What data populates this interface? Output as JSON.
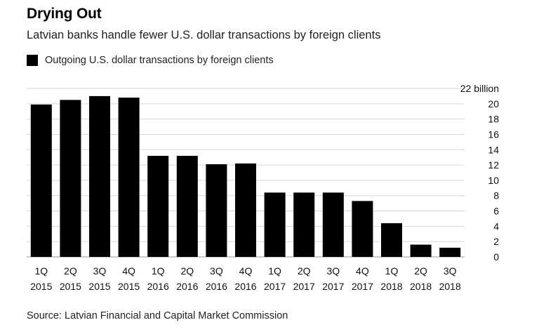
{
  "chart_data": {
    "type": "bar",
    "title": "Drying Out",
    "subtitle": "Latvian banks handle fewer U.S. dollar transactions by foreign clients",
    "legend": [
      "Outgoing U.S. dollar transactions by foreign clients"
    ],
    "categories": [
      [
        "1Q",
        "2015"
      ],
      [
        "2Q",
        "2015"
      ],
      [
        "3Q",
        "2015"
      ],
      [
        "4Q",
        "2015"
      ],
      [
        "1Q",
        "2016"
      ],
      [
        "2Q",
        "2016"
      ],
      [
        "3Q",
        "2016"
      ],
      [
        "4Q",
        "2016"
      ],
      [
        "1Q",
        "2017"
      ],
      [
        "2Q",
        "2017"
      ],
      [
        "3Q",
        "2017"
      ],
      [
        "4Q",
        "2017"
      ],
      [
        "1Q",
        "2018"
      ],
      [
        "2Q",
        "2018"
      ],
      [
        "3Q",
        "2018"
      ]
    ],
    "values": [
      19.9,
      20.5,
      21.0,
      20.8,
      13.2,
      13.2,
      12.1,
      12.2,
      8.4,
      8.4,
      8.4,
      7.3,
      4.4,
      1.6,
      1.2
    ],
    "ylim": [
      0,
      22
    ],
    "yticks": [
      0,
      2,
      4,
      6,
      8,
      10,
      12,
      14,
      16,
      18,
      20
    ],
    "top_tick_label": "22 billion",
    "ylabel": "",
    "xlabel": "",
    "grid": true,
    "y_axis_position": "right",
    "bar_color": "#000000",
    "source": "Source: Latvian Financial and Capital Market Commission"
  }
}
